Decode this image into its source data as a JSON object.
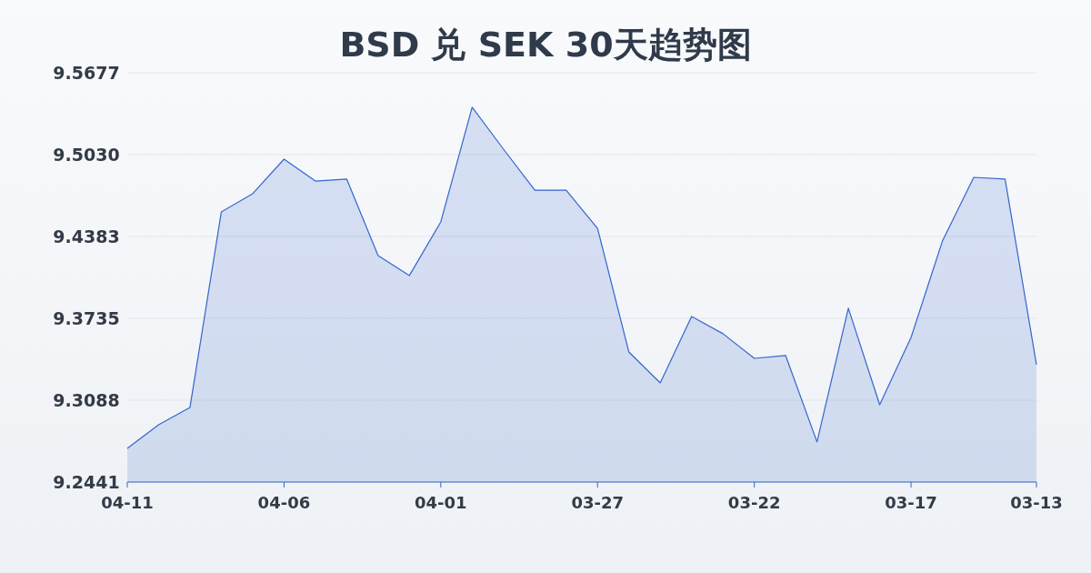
{
  "chart_data": {
    "type": "area",
    "title": "BSD 兑 SEK 30天趋势图",
    "categories": [
      "04-11",
      null,
      null,
      null,
      null,
      "04-06",
      null,
      null,
      null,
      null,
      "04-01",
      null,
      null,
      null,
      null,
      "03-27",
      null,
      null,
      null,
      null,
      "03-22",
      null,
      null,
      null,
      null,
      "03-17",
      null,
      null,
      null,
      "03-13"
    ],
    "series": [
      {
        "color": "#3366cc",
        "values": [
          9.2707,
          9.2894,
          9.3031,
          9.4577,
          9.4721,
          9.4994,
          9.4821,
          9.4836,
          9.4232,
          9.4074,
          9.4498,
          9.5404,
          9.5073,
          9.4749,
          9.4749,
          9.4447,
          9.3469,
          9.3225,
          9.375,
          9.3614,
          9.3419,
          9.3441,
          9.2758,
          9.3815,
          9.3052,
          9.3584,
          9.4346,
          9.485,
          9.4836,
          9.3369
        ]
      }
    ],
    "ylim": [
      9.2441,
      9.5677
    ],
    "yticks": [
      {
        "value": 9.2441,
        "label": "9.2441"
      },
      {
        "value": 9.3088,
        "label": "9.3088"
      },
      {
        "value": 9.3735,
        "label": "9.3735"
      },
      {
        "value": 9.4383,
        "label": "9.4383"
      },
      {
        "value": 9.503,
        "label": "9.5030"
      },
      {
        "value": 9.5677,
        "label": "9.5677"
      }
    ],
    "grid": "y"
  }
}
